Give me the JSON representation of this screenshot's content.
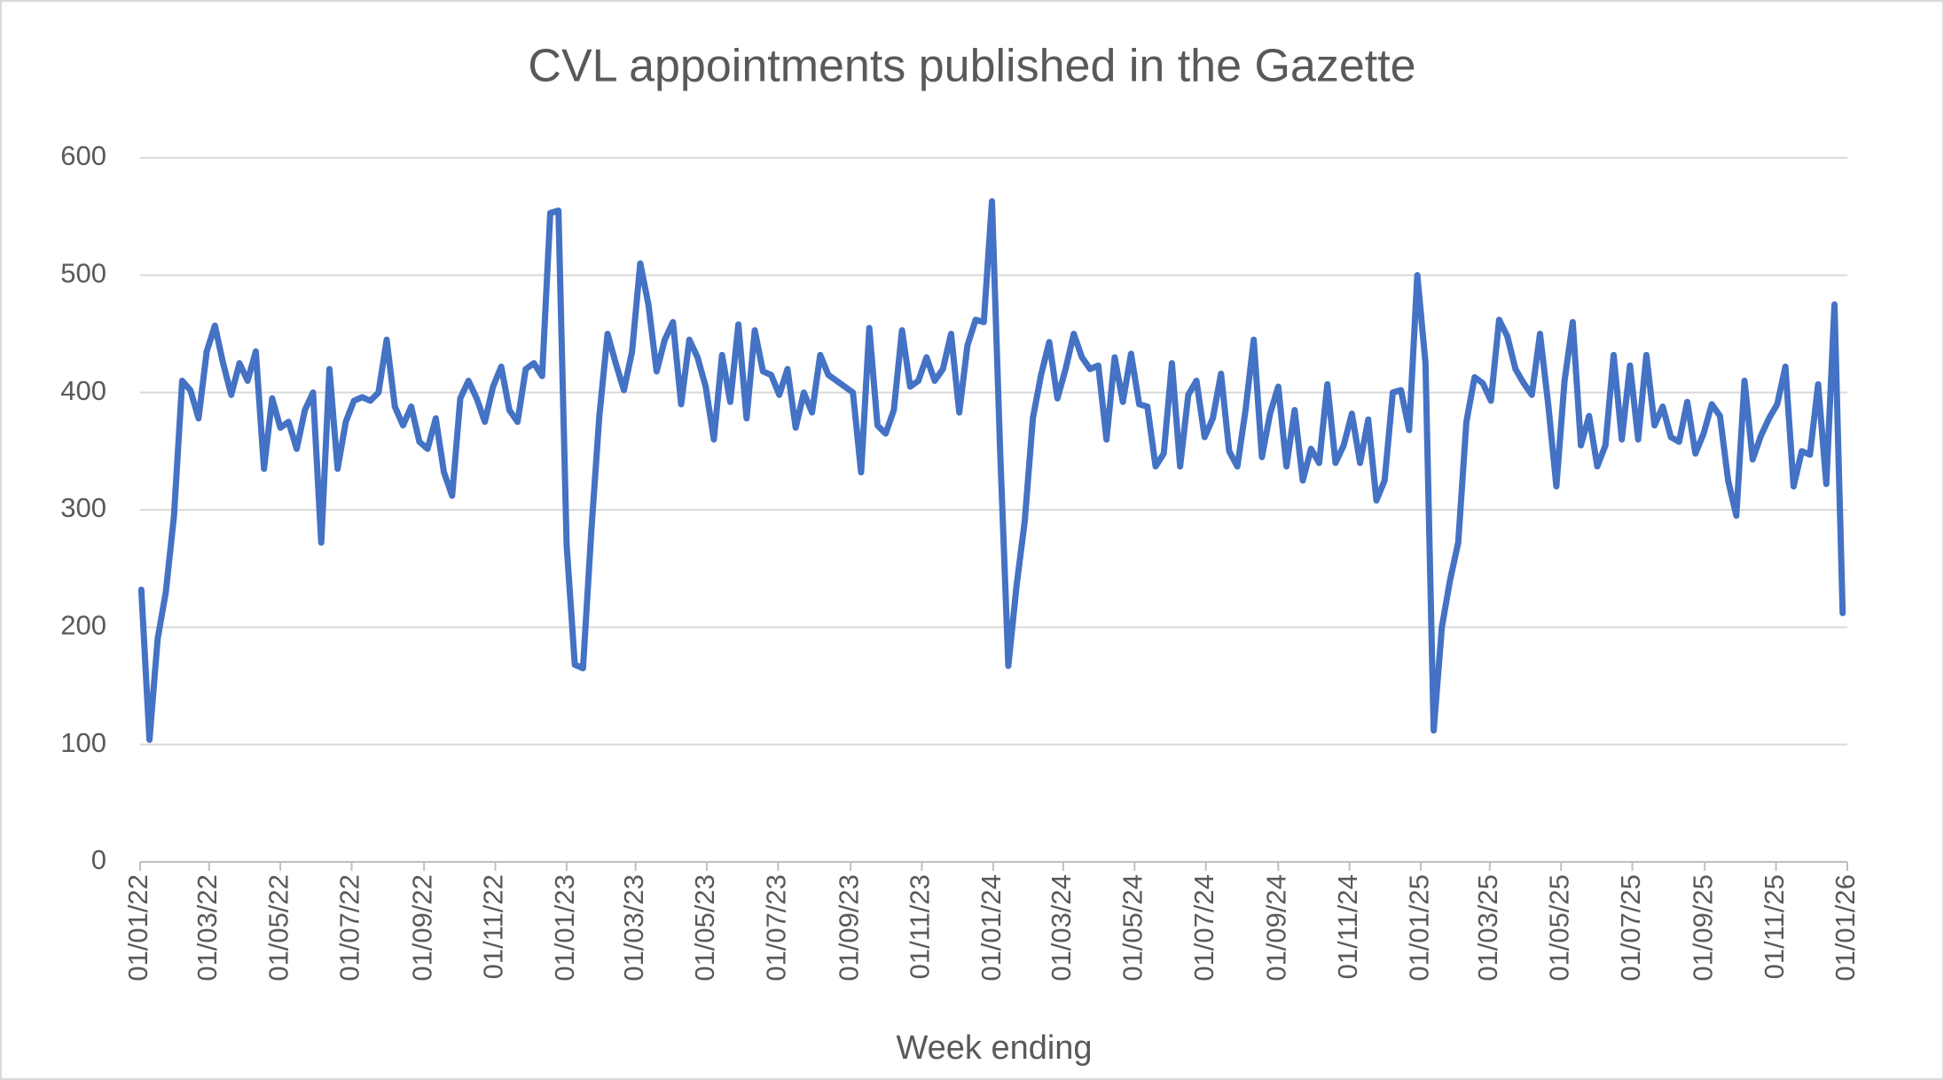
{
  "chart_data": {
    "type": "line",
    "title": "CVL appointments published in the Gazette",
    "x_label": "Week ending",
    "color": "#4472c4",
    "grid": true,
    "x": [
      "2022-01-02",
      "2022-01-09",
      "2022-01-16",
      "2022-01-23",
      "2022-01-30",
      "2022-02-06",
      "2022-02-13",
      "2022-02-20",
      "2022-02-27",
      "2022-03-06",
      "2022-03-13",
      "2022-03-20",
      "2022-03-27",
      "2022-04-03",
      "2022-04-10",
      "2022-04-17",
      "2022-04-24",
      "2022-05-01",
      "2022-05-08",
      "2022-05-15",
      "2022-05-22",
      "2022-05-29",
      "2022-06-05",
      "2022-06-12",
      "2022-06-19",
      "2022-06-26",
      "2022-07-03",
      "2022-07-10",
      "2022-07-17",
      "2022-07-24",
      "2022-07-31",
      "2022-08-07",
      "2022-08-14",
      "2022-08-21",
      "2022-08-28",
      "2022-09-04",
      "2022-09-11",
      "2022-09-18",
      "2022-09-25",
      "2022-10-02",
      "2022-10-09",
      "2022-10-16",
      "2022-10-23",
      "2022-10-30",
      "2022-11-06",
      "2022-11-13",
      "2022-11-20",
      "2022-11-27",
      "2022-12-04",
      "2022-12-11",
      "2022-12-18",
      "2022-12-25",
      "2023-01-01",
      "2023-01-08",
      "2023-01-15",
      "2023-01-22",
      "2023-01-29",
      "2023-02-05",
      "2023-02-12",
      "2023-02-19",
      "2023-02-26",
      "2023-03-05",
      "2023-03-12",
      "2023-03-19",
      "2023-03-26",
      "2023-04-02",
      "2023-04-09",
      "2023-04-16",
      "2023-04-23",
      "2023-04-30",
      "2023-05-07",
      "2023-05-14",
      "2023-05-21",
      "2023-05-28",
      "2023-06-04",
      "2023-06-11",
      "2023-06-18",
      "2023-06-25",
      "2023-07-02",
      "2023-07-09",
      "2023-07-16",
      "2023-07-23",
      "2023-07-30",
      "2023-08-06",
      "2023-08-13",
      "2023-08-20",
      "2023-08-27",
      "2023-09-03",
      "2023-09-10",
      "2023-09-17",
      "2023-09-24",
      "2023-10-01",
      "2023-10-08",
      "2023-10-15",
      "2023-10-22",
      "2023-10-29",
      "2023-11-05",
      "2023-11-12",
      "2023-11-19",
      "2023-11-26",
      "2023-12-03",
      "2023-12-10",
      "2023-12-17",
      "2023-12-24",
      "2023-12-31",
      "2024-01-07",
      "2024-01-14",
      "2024-01-21",
      "2024-01-28",
      "2024-02-04",
      "2024-02-11",
      "2024-02-18",
      "2024-02-25",
      "2024-03-03",
      "2024-03-10",
      "2024-03-17",
      "2024-03-24",
      "2024-03-31",
      "2024-04-07",
      "2024-04-14",
      "2024-04-21",
      "2024-04-28",
      "2024-05-05",
      "2024-05-12",
      "2024-05-19",
      "2024-05-26",
      "2024-06-02",
      "2024-06-09",
      "2024-06-16",
      "2024-06-23",
      "2024-06-30",
      "2024-07-07",
      "2024-07-14",
      "2024-07-21",
      "2024-07-28",
      "2024-08-04",
      "2024-08-11",
      "2024-08-18",
      "2024-08-25",
      "2024-09-01",
      "2024-09-08",
      "2024-09-15",
      "2024-09-22",
      "2024-09-29",
      "2024-10-06",
      "2024-10-13",
      "2024-10-20",
      "2024-10-27",
      "2024-11-03",
      "2024-11-10",
      "2024-11-17",
      "2024-11-24",
      "2024-12-01",
      "2024-12-08",
      "2024-12-15",
      "2024-12-22",
      "2024-12-29",
      "2025-01-05",
      "2025-01-12",
      "2025-01-19",
      "2025-01-26",
      "2025-02-02",
      "2025-02-09",
      "2025-02-16",
      "2025-02-23",
      "2025-03-02",
      "2025-03-09",
      "2025-03-16",
      "2025-03-23",
      "2025-03-30",
      "2025-04-06",
      "2025-04-13",
      "2025-04-20",
      "2025-04-27",
      "2025-05-04",
      "2025-05-11",
      "2025-05-18",
      "2025-05-25",
      "2025-06-01",
      "2025-06-08",
      "2025-06-15",
      "2025-06-22",
      "2025-06-29",
      "2025-07-06",
      "2025-07-13",
      "2025-07-20",
      "2025-07-27",
      "2025-08-03",
      "2025-08-10",
      "2025-08-17",
      "2025-08-24",
      "2025-08-31",
      "2025-09-07",
      "2025-09-14",
      "2025-09-21",
      "2025-09-28",
      "2025-10-05",
      "2025-10-12",
      "2025-10-19",
      "2025-10-26",
      "2025-11-02",
      "2025-11-09",
      "2025-11-16",
      "2025-11-23",
      "2025-11-30",
      "2025-12-07",
      "2025-12-14",
      "2025-12-21",
      "2025-12-28"
    ],
    "values": [
      232,
      104,
      190,
      230,
      295,
      410,
      402,
      378,
      435,
      457,
      425,
      398,
      425,
      410,
      435,
      335,
      395,
      370,
      375,
      352,
      385,
      400,
      272,
      420,
      335,
      375,
      393,
      396,
      393,
      400,
      445,
      388,
      372,
      388,
      358,
      352,
      378,
      332,
      312,
      395,
      410,
      395,
      375,
      405,
      422,
      385,
      375,
      420,
      425,
      414,
      553,
      555,
      270,
      168,
      165,
      280,
      380,
      450,
      425,
      402,
      435,
      510,
      475,
      418,
      445,
      460,
      390,
      445,
      430,
      405,
      360,
      432,
      392,
      458,
      378,
      453,
      418,
      415,
      398,
      420,
      370,
      400,
      383,
      432,
      415,
      410,
      405,
      400,
      332,
      455,
      372,
      365,
      385,
      453,
      405,
      410,
      430,
      410,
      420,
      450,
      383,
      440,
      462,
      460,
      563,
      350,
      167,
      235,
      290,
      378,
      415,
      443,
      395,
      420,
      450,
      430,
      420,
      423,
      360,
      430,
      392,
      433,
      390,
      388,
      337,
      348,
      425,
      337,
      398,
      410,
      362,
      378,
      416,
      350,
      337,
      385,
      445,
      345,
      382,
      405,
      337,
      385,
      325,
      352,
      340,
      407,
      340,
      355,
      382,
      340,
      377,
      308,
      325,
      400,
      402,
      368,
      500,
      425,
      112,
      200,
      240,
      272,
      375,
      413,
      408,
      393,
      462,
      448,
      420,
      408,
      398,
      450,
      390,
      320,
      410,
      460,
      355,
      380,
      337,
      355,
      432,
      360,
      423,
      360,
      432,
      372,
      388,
      362,
      358,
      392,
      348,
      365,
      390,
      380,
      325,
      295,
      410,
      343,
      363,
      378,
      390,
      422,
      320,
      350,
      347,
      407,
      322,
      475,
      212
    ],
    "xlim": [
      "2022-01-01",
      "2026-01-01"
    ],
    "xticks": [
      {
        "value": "2022-01-01",
        "label": "01/01/22"
      },
      {
        "value": "2022-03-01",
        "label": "01/03/22"
      },
      {
        "value": "2022-05-01",
        "label": "01/05/22"
      },
      {
        "value": "2022-07-01",
        "label": "01/07/22"
      },
      {
        "value": "2022-09-01",
        "label": "01/09/22"
      },
      {
        "value": "2022-11-01",
        "label": "01/11/22"
      },
      {
        "value": "2023-01-01",
        "label": "01/01/23"
      },
      {
        "value": "2023-03-01",
        "label": "01/03/23"
      },
      {
        "value": "2023-05-01",
        "label": "01/05/23"
      },
      {
        "value": "2023-07-01",
        "label": "01/07/23"
      },
      {
        "value": "2023-09-01",
        "label": "01/09/23"
      },
      {
        "value": "2023-11-01",
        "label": "01/11/23"
      },
      {
        "value": "2024-01-01",
        "label": "01/01/24"
      },
      {
        "value": "2024-03-01",
        "label": "01/03/24"
      },
      {
        "value": "2024-05-01",
        "label": "01/05/24"
      },
      {
        "value": "2024-07-01",
        "label": "01/07/24"
      },
      {
        "value": "2024-09-01",
        "label": "01/09/24"
      },
      {
        "value": "2024-11-01",
        "label": "01/11/24"
      },
      {
        "value": "2025-01-01",
        "label": "01/01/25"
      },
      {
        "value": "2025-03-01",
        "label": "01/03/25"
      },
      {
        "value": "2025-05-01",
        "label": "01/05/25"
      },
      {
        "value": "2025-07-01",
        "label": "01/07/25"
      },
      {
        "value": "2025-09-01",
        "label": "01/09/25"
      },
      {
        "value": "2025-11-01",
        "label": "01/11/25"
      },
      {
        "value": "2026-01-01",
        "label": "01/01/26"
      }
    ],
    "ylim": [
      0,
      600
    ],
    "yticks": [
      0,
      100,
      200,
      300,
      400,
      500,
      600
    ]
  }
}
